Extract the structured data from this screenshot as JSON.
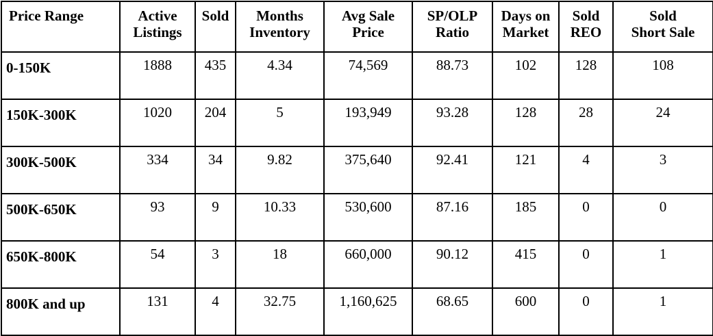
{
  "table": {
    "headers": [
      {
        "line1": "Price Range",
        "line2": ""
      },
      {
        "line1": "Active",
        "line2": "Listings"
      },
      {
        "line1": "Sold",
        "line2": ""
      },
      {
        "line1": "Months",
        "line2": "Inventory"
      },
      {
        "line1": "Avg Sale",
        "line2": "Price"
      },
      {
        "line1": "SP/OLP",
        "line2": "Ratio"
      },
      {
        "line1": "Days on",
        "line2": "Market"
      },
      {
        "line1": "Sold",
        "line2": "REO"
      },
      {
        "line1": "Sold",
        "line2": "Short Sale"
      }
    ],
    "rows": [
      [
        "0-150K",
        "1888",
        "435",
        "4.34",
        "74,569",
        "88.73",
        "102",
        "128",
        "108"
      ],
      [
        "150K-300K",
        "1020",
        "204",
        "5",
        "193,949",
        "93.28",
        "128",
        "28",
        "24"
      ],
      [
        "300K-500K",
        "334",
        "34",
        "9.82",
        "375,640",
        "92.41",
        "121",
        "4",
        "3"
      ],
      [
        "500K-650K",
        "93",
        "9",
        "10.33",
        "530,600",
        "87.16",
        "185",
        "0",
        "0"
      ],
      [
        "650K-800K",
        "54",
        "3",
        "18",
        "660,000",
        "90.12",
        "415",
        "0",
        "1"
      ],
      [
        "800K and up",
        "131",
        "4",
        "32.75",
        "1,160,625",
        "68.65",
        "600",
        "0",
        "1"
      ]
    ]
  }
}
